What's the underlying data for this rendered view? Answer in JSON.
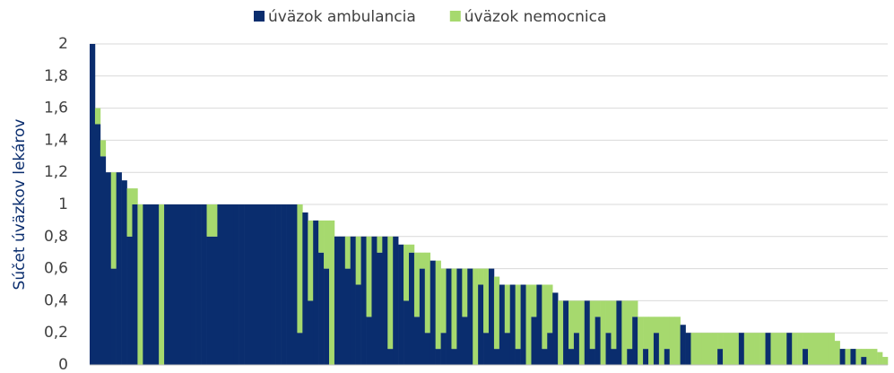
{
  "chart_data": {
    "type": "stacked_bar",
    "y_label": "Súčet úväzkov lekárov",
    "categories": [
      null,
      null,
      null,
      null,
      null,
      null,
      null,
      null,
      null,
      null,
      null,
      null,
      null,
      null,
      null,
      null,
      null,
      null,
      null,
      null,
      null,
      null,
      null,
      null,
      null,
      null,
      null,
      null,
      null,
      null,
      null,
      null,
      null,
      null,
      null,
      null,
      null,
      null,
      null,
      null,
      null,
      null,
      null,
      null,
      null,
      null,
      null,
      null,
      null,
      null,
      null,
      null,
      null,
      null,
      null,
      null,
      null,
      null,
      null,
      null,
      null,
      null,
      null,
      null,
      null,
      null,
      null,
      null,
      null,
      null,
      null,
      null,
      null,
      null,
      null,
      null,
      null,
      null,
      null,
      null,
      null,
      null,
      null,
      null,
      null,
      null,
      null,
      null,
      null,
      null,
      null,
      null,
      null,
      null,
      null,
      null,
      null,
      null,
      null,
      null,
      null,
      null,
      null,
      null,
      null,
      null,
      null,
      null,
      null,
      null,
      null,
      null,
      null,
      null,
      null,
      null,
      null,
      null,
      null,
      null,
      null,
      null,
      null,
      null,
      null,
      null,
      null,
      null,
      null,
      null,
      null,
      null,
      null,
      null,
      null,
      null,
      null,
      null,
      null,
      null,
      null,
      null,
      null,
      null,
      null,
      null,
      null,
      null,
      null,
      null
    ],
    "series": [
      {
        "name": "úväzok ambulancia",
        "color": "#0a2d6e",
        "values": [
          2,
          1.5,
          1.3,
          1.2,
          0.6,
          1.2,
          1.15,
          0.8,
          1.0,
          0,
          1,
          1,
          1,
          0,
          1,
          1,
          1,
          1,
          1,
          1,
          1,
          1,
          0.8,
          0.8,
          1,
          1,
          1,
          1,
          1,
          1,
          1,
          1,
          1,
          1,
          1,
          1,
          1,
          1,
          1,
          0.2,
          0.95,
          0.4,
          0.9,
          0.7,
          0.6,
          0,
          0.8,
          0.8,
          0.6,
          0.8,
          0.5,
          0.8,
          0.3,
          0.8,
          0.7,
          0.8,
          0.1,
          0.8,
          0.75,
          0.4,
          0.7,
          0.3,
          0.6,
          0.2,
          0.65,
          0.1,
          0.2,
          0.6,
          0.1,
          0.6,
          0.3,
          0.6,
          0,
          0.5,
          0.2,
          0.6,
          0.1,
          0.5,
          0.2,
          0.5,
          0.1,
          0.5,
          0,
          0.3,
          0.5,
          0.1,
          0.2,
          0.45,
          0,
          0.4,
          0.1,
          0.2,
          0,
          0.4,
          0.1,
          0.3,
          0,
          0.2,
          0.1,
          0.4,
          0,
          0.1,
          0.3,
          0,
          0.1,
          0,
          0.2,
          0,
          0.1,
          0,
          0,
          0.25,
          0.2,
          0,
          0,
          0,
          0,
          0,
          0.1,
          0,
          0,
          0,
          0.2,
          0,
          0,
          0,
          0,
          0.2,
          0,
          0,
          0,
          0.2,
          0,
          0,
          0.1,
          0,
          0,
          0,
          0,
          0,
          0,
          0.1,
          0,
          0.1,
          0,
          0.05,
          0,
          0,
          0,
          0
        ]
      },
      {
        "name": "úväzok nemocnica",
        "color": "#a6d96e",
        "values": [
          0,
          0.1,
          0.1,
          0,
          0.6,
          0,
          0,
          0.3,
          0.1,
          1,
          0,
          0,
          0,
          1,
          0,
          0,
          0,
          0,
          0,
          0,
          0,
          0,
          0.2,
          0.2,
          0,
          0,
          0,
          0,
          0,
          0,
          0,
          0,
          0,
          0,
          0,
          0,
          0,
          0,
          0,
          0.8,
          0,
          0.5,
          0,
          0.2,
          0.3,
          0.9,
          0,
          0,
          0.2,
          0,
          0.3,
          0,
          0.5,
          0,
          0.1,
          0,
          0.7,
          0,
          0,
          0.35,
          0.05,
          0.4,
          0.1,
          0.5,
          0,
          0.55,
          0.4,
          0,
          0.5,
          0,
          0.3,
          0,
          0.6,
          0.1,
          0.4,
          0,
          0.45,
          0,
          0.3,
          0,
          0.4,
          0,
          0.5,
          0.2,
          0,
          0.4,
          0.3,
          0,
          0.4,
          0,
          0.3,
          0.2,
          0.4,
          0,
          0.3,
          0.1,
          0.4,
          0.2,
          0.3,
          0,
          0.4,
          0.3,
          0.1,
          0.3,
          0.2,
          0.3,
          0.1,
          0.3,
          0.2,
          0.3,
          0.3,
          0,
          0,
          0.2,
          0.2,
          0.2,
          0.2,
          0.2,
          0.1,
          0.2,
          0.2,
          0.2,
          0,
          0.2,
          0.2,
          0.2,
          0.2,
          0,
          0.2,
          0.2,
          0.2,
          0,
          0.2,
          0.2,
          0.1,
          0.2,
          0.2,
          0.2,
          0.2,
          0.2,
          0.15,
          0,
          0.1,
          0,
          0.1,
          0.05,
          0.1,
          0.1,
          0.08,
          0.05
        ]
      }
    ],
    "ylim": [
      0,
      2
    ],
    "yticks": [
      0,
      {
        "value": 0.2,
        "label": "0,2"
      },
      {
        "value": 0.4,
        "label": "0,4"
      },
      {
        "value": 0.6,
        "label": "0,6"
      },
      {
        "value": 0.8,
        "label": "0,8"
      },
      1,
      {
        "value": 1.2,
        "label": "1,2"
      },
      {
        "value": 1.4,
        "label": "1,4"
      },
      {
        "value": 1.6,
        "label": "1,6"
      },
      {
        "value": 1.8,
        "label": "1,8"
      },
      2
    ],
    "grid": true,
    "legend": "top"
  }
}
